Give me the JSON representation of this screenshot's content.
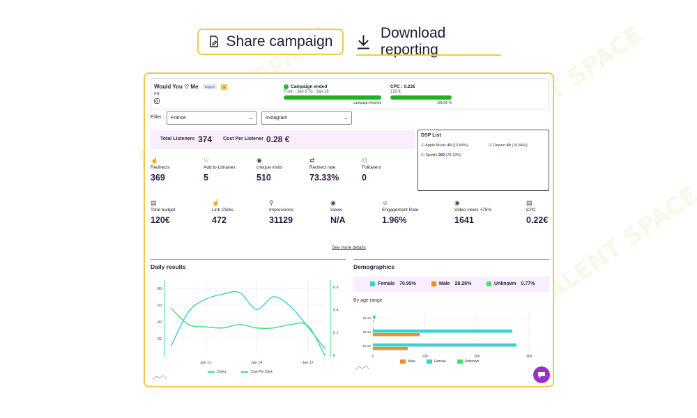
{
  "watermark": "AI TALENT SPACE",
  "top": {
    "share_label": "Share campaign",
    "download_label": "Download reporting"
  },
  "campaign": {
    "title": "Would You ♡ Me",
    "badge": "Legacy",
    "country": "FR",
    "status": "Campaign ended",
    "dates": "From : Jan 9 To : Jan 18",
    "progress_label": "campaign finished",
    "cpc_title": "CPC : 0.22€",
    "cpc_budget": "120 €",
    "cpc_progress_label": "100.00 %",
    "progress": 1.0,
    "cpc_progress": 1.0
  },
  "filter": {
    "label": "Filter :",
    "country": "France",
    "platform": "Instagram"
  },
  "listeners": {
    "total_label": "Total Listeners",
    "total_value": "374",
    "cost_label": "Cost Per Listener",
    "cost_value": "0.28 €"
  },
  "dsp": {
    "title": "DSP List",
    "items": [
      {
        "name": "Apple Music",
        "count": "40",
        "pct": "(10.84%)"
      },
      {
        "name": "Deezer",
        "count": "40",
        "pct": "(10.84%)"
      },
      {
        "name": "Spotify",
        "count": "289",
        "pct": "(78.32%)"
      }
    ]
  },
  "metrics_row1": [
    {
      "icon": "☝",
      "label": "Redirects",
      "value": "369"
    },
    {
      "icon": "♡",
      "label": "Add to Libraries",
      "value": "5"
    },
    {
      "icon": "◉",
      "label": "Unique visits",
      "value": "510"
    },
    {
      "icon": "⇄",
      "label": "Redirect rate",
      "value": "73.33%"
    },
    {
      "icon": "⚇",
      "label": "Followers",
      "value": "0"
    }
  ],
  "metrics_row2": [
    {
      "icon": "▤",
      "label": "Total budget",
      "value": "120€"
    },
    {
      "icon": "☝",
      "label": "Link Clicks",
      "value": "472"
    },
    {
      "icon": "⚲",
      "label": "Impressions",
      "value": "31129"
    },
    {
      "icon": "◉",
      "label": "Views",
      "value": "N/A"
    },
    {
      "icon": "☺",
      "label": "Engagement Rate",
      "value": "1.96%"
    },
    {
      "icon": "◉",
      "label": "Video views +75%",
      "value": "1641"
    },
    {
      "icon": "▤",
      "label": "CPC",
      "value": "0.22€"
    }
  ],
  "see_more": "See more details",
  "daily": {
    "title": "Daily results",
    "left_ticks": [
      "80",
      "60",
      "40",
      "20"
    ],
    "right_ticks": [
      "0.6",
      "0.4",
      "0.2",
      "0"
    ],
    "x_ticks": [
      "Jan 11",
      "Jan 14",
      "Jan 17"
    ],
    "legend": [
      "Clicks",
      "Cost Per Click"
    ]
  },
  "demographics": {
    "title": "Demographics",
    "female_label": "Female",
    "female_value": "70.95%",
    "male_label": "Male",
    "male_value": "28.28%",
    "unknown_label": "Unknown",
    "unknown_value": "0.77%",
    "age_title": "By age range",
    "legend": [
      "Male",
      "Female",
      "Unknown"
    ]
  },
  "colors": {
    "accent": "#f2c84b",
    "green": "#1db51d",
    "teal": "#3ecfcf",
    "orange": "#f28c28",
    "mint": "#3ee07a",
    "purple": "#9b2fc9",
    "dark": "#2a1d3f"
  },
  "chart_data": [
    {
      "type": "line",
      "title": "Daily results",
      "x": [
        "Jan 9",
        "Jan 10",
        "Jan 11",
        "Jan 12",
        "Jan 13",
        "Jan 14",
        "Jan 15",
        "Jan 16",
        "Jan 17",
        "Jan 18"
      ],
      "series": [
        {
          "name": "Clicks",
          "axis": "left",
          "values": [
            12,
            52,
            67,
            73,
            75,
            55,
            70,
            58,
            34,
            8
          ]
        },
        {
          "name": "Cost Per Click",
          "axis": "right",
          "values": [
            0.41,
            0.27,
            0.25,
            0.24,
            0.27,
            0.24,
            0.24,
            0.27,
            0.26,
            0.0
          ]
        }
      ],
      "x_tick_labels": [
        "Jan 11",
        "Jan 14",
        "Jan 17"
      ],
      "ylim_left": [
        0,
        90
      ],
      "yticks_left": [
        20,
        40,
        60,
        80
      ],
      "ylim_right": [
        0,
        0.66
      ],
      "yticks_right": [
        0,
        0.2,
        0.4,
        0.6
      ],
      "grid": true
    },
    {
      "type": "bar",
      "orientation": "horizontal",
      "title": "By age range",
      "categories": [
        "35-44",
        "25-34",
        "18-24"
      ],
      "series": [
        {
          "name": "Male",
          "values": [
            1,
            90,
            67
          ]
        },
        {
          "name": "Female",
          "values": [
            5,
            268,
            276
          ]
        },
        {
          "name": "Unknown",
          "values": [
            0,
            2,
            0
          ]
        }
      ],
      "xlim": [
        0,
        300
      ],
      "xticks": [
        0,
        100,
        200,
        300
      ],
      "grid": true
    }
  ]
}
